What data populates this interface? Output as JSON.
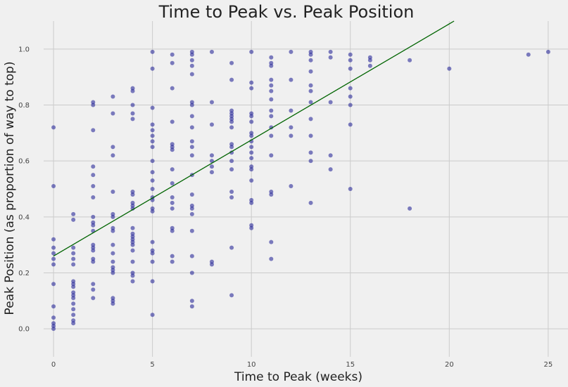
{
  "chart_data": {
    "type": "scatter",
    "title": "Time to Peak vs. Peak Position",
    "xlabel": "Time to Peak (weeks)",
    "ylabel": "Peak Position (as proportion of way to top)",
    "xlim": [
      -0.5,
      26
    ],
    "ylim": [
      -0.1,
      1.1
    ],
    "x_ticks": [
      0,
      5,
      10,
      15,
      20,
      25
    ],
    "y_ticks": [
      0.0,
      0.2,
      0.4,
      0.6,
      0.8,
      1.0
    ],
    "y_tick_labels": [
      "0.0",
      "0.2",
      "0.4",
      "0.6",
      "0.8",
      "1.0"
    ],
    "grid": true,
    "colors": {
      "points": "#2a2a9a",
      "fit_line": "#006400",
      "grid": "#cbcbcb",
      "background": "#f0f0f0"
    },
    "fit_line": {
      "intercept": 0.26,
      "slope": 0.0415
    },
    "points": [
      [
        0,
        0.72
      ],
      [
        0,
        0.51
      ],
      [
        0,
        0.32
      ],
      [
        0,
        0.29
      ],
      [
        0,
        0.27
      ],
      [
        0,
        0.25
      ],
      [
        0,
        0.23
      ],
      [
        0,
        0.16
      ],
      [
        0,
        0.08
      ],
      [
        0,
        0.04
      ],
      [
        0,
        0.02
      ],
      [
        0,
        0.01
      ],
      [
        0,
        0.0
      ],
      [
        1,
        0.41
      ],
      [
        1,
        0.39
      ],
      [
        1,
        0.29
      ],
      [
        1,
        0.27
      ],
      [
        1,
        0.25
      ],
      [
        1,
        0.23
      ],
      [
        1,
        0.17
      ],
      [
        1,
        0.16
      ],
      [
        1,
        0.15
      ],
      [
        1,
        0.13
      ],
      [
        1,
        0.12
      ],
      [
        1,
        0.11
      ],
      [
        1,
        0.09
      ],
      [
        1,
        0.07
      ],
      [
        1,
        0.05
      ],
      [
        1,
        0.03
      ],
      [
        1,
        0.02
      ],
      [
        2,
        0.81
      ],
      [
        2,
        0.8
      ],
      [
        2,
        0.71
      ],
      [
        2,
        0.58
      ],
      [
        2,
        0.55
      ],
      [
        2,
        0.51
      ],
      [
        2,
        0.47
      ],
      [
        2,
        0.4
      ],
      [
        2,
        0.38
      ],
      [
        2,
        0.37
      ],
      [
        2,
        0.35
      ],
      [
        2,
        0.3
      ],
      [
        2,
        0.29
      ],
      [
        2,
        0.28
      ],
      [
        2,
        0.25
      ],
      [
        2,
        0.24
      ],
      [
        2,
        0.16
      ],
      [
        2,
        0.14
      ],
      [
        2,
        0.11
      ],
      [
        3,
        0.83
      ],
      [
        3,
        0.77
      ],
      [
        3,
        0.65
      ],
      [
        3,
        0.62
      ],
      [
        3,
        0.49
      ],
      [
        3,
        0.41
      ],
      [
        3,
        0.4
      ],
      [
        3,
        0.36
      ],
      [
        3,
        0.35
      ],
      [
        3,
        0.3
      ],
      [
        3,
        0.27
      ],
      [
        3,
        0.24
      ],
      [
        3,
        0.22
      ],
      [
        3,
        0.21
      ],
      [
        3,
        0.2
      ],
      [
        3,
        0.11
      ],
      [
        3,
        0.1
      ],
      [
        3,
        0.09
      ],
      [
        4,
        0.86
      ],
      [
        4,
        0.85
      ],
      [
        4,
        0.8
      ],
      [
        4,
        0.77
      ],
      [
        4,
        0.75
      ],
      [
        4,
        0.49
      ],
      [
        4,
        0.48
      ],
      [
        4,
        0.45
      ],
      [
        4,
        0.44
      ],
      [
        4,
        0.43
      ],
      [
        4,
        0.36
      ],
      [
        4,
        0.34
      ],
      [
        4,
        0.33
      ],
      [
        4,
        0.32
      ],
      [
        4,
        0.31
      ],
      [
        4,
        0.3
      ],
      [
        4,
        0.28
      ],
      [
        4,
        0.24
      ],
      [
        4,
        0.2
      ],
      [
        4,
        0.19
      ],
      [
        4,
        0.17
      ],
      [
        5,
        0.99
      ],
      [
        5,
        0.93
      ],
      [
        5,
        0.79
      ],
      [
        5,
        0.73
      ],
      [
        5,
        0.71
      ],
      [
        5,
        0.69
      ],
      [
        5,
        0.67
      ],
      [
        5,
        0.65
      ],
      [
        5,
        0.6
      ],
      [
        5,
        0.56
      ],
      [
        5,
        0.53
      ],
      [
        5,
        0.5
      ],
      [
        5,
        0.47
      ],
      [
        5,
        0.46
      ],
      [
        5,
        0.43
      ],
      [
        5,
        0.42
      ],
      [
        5,
        0.31
      ],
      [
        5,
        0.28
      ],
      [
        5,
        0.27
      ],
      [
        5,
        0.24
      ],
      [
        5,
        0.17
      ],
      [
        5,
        0.05
      ],
      [
        6,
        0.98
      ],
      [
        6,
        0.95
      ],
      [
        6,
        0.86
      ],
      [
        6,
        0.74
      ],
      [
        6,
        0.66
      ],
      [
        6,
        0.65
      ],
      [
        6,
        0.64
      ],
      [
        6,
        0.57
      ],
      [
        6,
        0.52
      ],
      [
        6,
        0.47
      ],
      [
        6,
        0.45
      ],
      [
        6,
        0.43
      ],
      [
        6,
        0.36
      ],
      [
        6,
        0.35
      ],
      [
        6,
        0.26
      ],
      [
        6,
        0.24
      ],
      [
        7,
        0.99
      ],
      [
        7,
        0.98
      ],
      [
        7,
        0.96
      ],
      [
        7,
        0.94
      ],
      [
        7,
        0.91
      ],
      [
        7,
        0.81
      ],
      [
        7,
        0.8
      ],
      [
        7,
        0.76
      ],
      [
        7,
        0.72
      ],
      [
        7,
        0.67
      ],
      [
        7,
        0.65
      ],
      [
        7,
        0.62
      ],
      [
        7,
        0.55
      ],
      [
        7,
        0.48
      ],
      [
        7,
        0.44
      ],
      [
        7,
        0.43
      ],
      [
        7,
        0.41
      ],
      [
        7,
        0.35
      ],
      [
        7,
        0.26
      ],
      [
        7,
        0.2
      ],
      [
        7,
        0.1
      ],
      [
        7,
        0.08
      ],
      [
        8,
        0.99
      ],
      [
        8,
        0.81
      ],
      [
        8,
        0.73
      ],
      [
        8,
        0.62
      ],
      [
        8,
        0.6
      ],
      [
        8,
        0.58
      ],
      [
        8,
        0.56
      ],
      [
        8,
        0.24
      ],
      [
        8,
        0.23
      ],
      [
        9,
        0.95
      ],
      [
        9,
        0.89
      ],
      [
        9,
        0.78
      ],
      [
        9,
        0.77
      ],
      [
        9,
        0.76
      ],
      [
        9,
        0.75
      ],
      [
        9,
        0.74
      ],
      [
        9,
        0.72
      ],
      [
        9,
        0.66
      ],
      [
        9,
        0.65
      ],
      [
        9,
        0.63
      ],
      [
        9,
        0.6
      ],
      [
        9,
        0.57
      ],
      [
        9,
        0.49
      ],
      [
        9,
        0.47
      ],
      [
        9,
        0.29
      ],
      [
        9,
        0.12
      ],
      [
        10,
        0.99
      ],
      [
        10,
        0.88
      ],
      [
        10,
        0.86
      ],
      [
        10,
        0.77
      ],
      [
        10,
        0.76
      ],
      [
        10,
        0.74
      ],
      [
        10,
        0.7
      ],
      [
        10,
        0.69
      ],
      [
        10,
        0.67
      ],
      [
        10,
        0.65
      ],
      [
        10,
        0.63
      ],
      [
        10,
        0.61
      ],
      [
        10,
        0.58
      ],
      [
        10,
        0.57
      ],
      [
        10,
        0.53
      ],
      [
        10,
        0.46
      ],
      [
        10,
        0.45
      ],
      [
        10,
        0.37
      ],
      [
        10,
        0.36
      ],
      [
        11,
        0.97
      ],
      [
        11,
        0.95
      ],
      [
        11,
        0.94
      ],
      [
        11,
        0.89
      ],
      [
        11,
        0.87
      ],
      [
        11,
        0.85
      ],
      [
        11,
        0.82
      ],
      [
        11,
        0.78
      ],
      [
        11,
        0.76
      ],
      [
        11,
        0.72
      ],
      [
        11,
        0.69
      ],
      [
        11,
        0.62
      ],
      [
        11,
        0.49
      ],
      [
        11,
        0.48
      ],
      [
        11,
        0.31
      ],
      [
        11,
        0.25
      ],
      [
        12,
        0.99
      ],
      [
        12,
        0.89
      ],
      [
        12,
        0.78
      ],
      [
        12,
        0.72
      ],
      [
        12,
        0.69
      ],
      [
        12,
        0.51
      ],
      [
        13,
        0.99
      ],
      [
        13,
        0.98
      ],
      [
        13,
        0.96
      ],
      [
        13,
        0.92
      ],
      [
        13,
        0.87
      ],
      [
        13,
        0.85
      ],
      [
        13,
        0.81
      ],
      [
        13,
        0.75
      ],
      [
        13,
        0.69
      ],
      [
        13,
        0.63
      ],
      [
        13,
        0.6
      ],
      [
        13,
        0.45
      ],
      [
        14,
        0.99
      ],
      [
        14,
        0.97
      ],
      [
        14,
        0.81
      ],
      [
        14,
        0.62
      ],
      [
        14,
        0.57
      ],
      [
        15,
        0.98
      ],
      [
        15,
        0.96
      ],
      [
        15,
        0.93
      ],
      [
        15,
        0.86
      ],
      [
        15,
        0.83
      ],
      [
        15,
        0.8
      ],
      [
        15,
        0.73
      ],
      [
        15,
        0.5
      ],
      [
        16,
        0.97
      ],
      [
        16,
        0.96
      ],
      [
        16,
        0.94
      ],
      [
        18,
        0.96
      ],
      [
        18,
        0.43
      ],
      [
        20,
        0.93
      ],
      [
        24,
        0.98
      ],
      [
        25,
        0.99
      ]
    ]
  }
}
